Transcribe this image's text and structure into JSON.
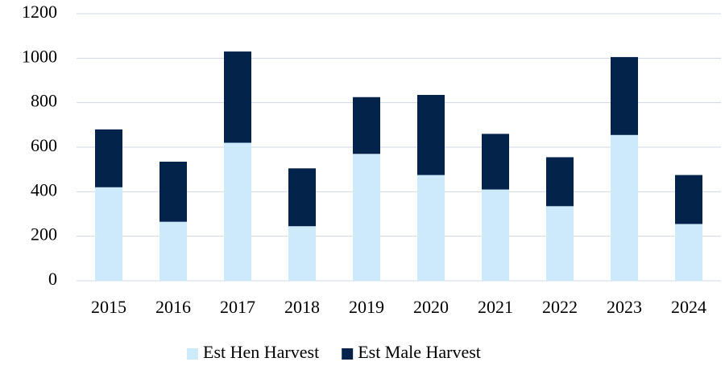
{
  "chart_data": {
    "type": "bar",
    "stacked": true,
    "categories": [
      "2015",
      "2016",
      "2017",
      "2018",
      "2019",
      "2020",
      "2021",
      "2022",
      "2023",
      "2024"
    ],
    "series": [
      {
        "name": "Est Hen Harvest",
        "color": "#cdeafb",
        "values": [
          420,
          265,
          620,
          245,
          570,
          475,
          410,
          335,
          655,
          255
        ]
      },
      {
        "name": "Est Male Harvest",
        "color": "#03234a",
        "values": [
          260,
          270,
          410,
          260,
          255,
          360,
          250,
          220,
          350,
          220
        ]
      }
    ],
    "ylim": [
      0,
      1200
    ],
    "yticks": [
      0,
      200,
      400,
      600,
      800,
      1000,
      1200
    ],
    "grid": true,
    "legend": "bottom"
  }
}
